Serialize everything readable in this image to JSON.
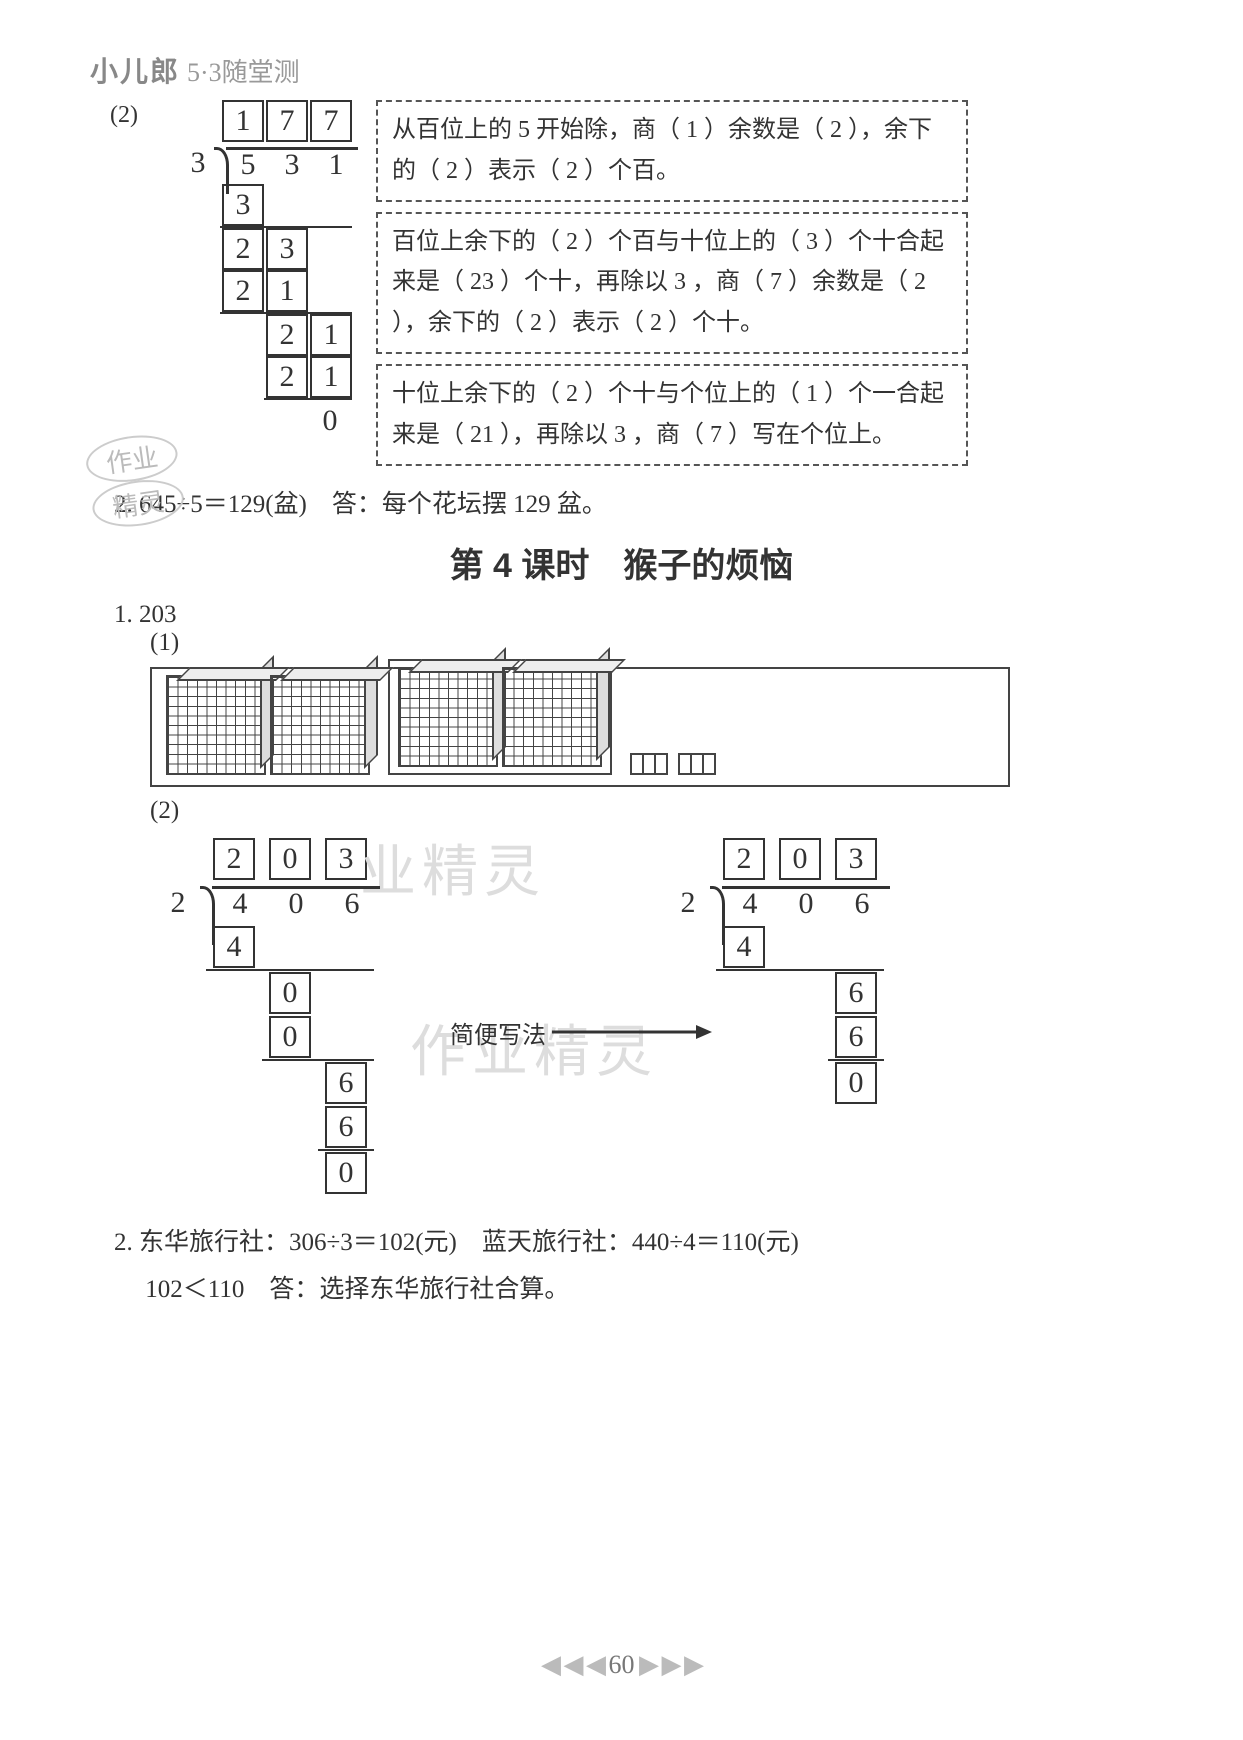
{
  "header": {
    "brand": "小儿郎",
    "subtitle": "5·3随堂测"
  },
  "problem2_top": {
    "label": "(2)",
    "quotient": [
      "1",
      "7",
      "7"
    ],
    "divisor": "3",
    "dividend": [
      "5",
      "3",
      "1"
    ],
    "steps": [
      {
        "vals": [
          "3"
        ],
        "indent": 0,
        "line_after": true,
        "boxed": [
          true
        ]
      },
      {
        "vals": [
          "2",
          "3"
        ],
        "indent": 0,
        "boxed": [
          true,
          true
        ]
      },
      {
        "vals": [
          "2",
          "1"
        ],
        "indent": 0,
        "line_after": true,
        "boxed": [
          true,
          true
        ]
      },
      {
        "vals": [
          "2",
          "1"
        ],
        "indent": 1,
        "boxed": [
          true,
          true
        ]
      },
      {
        "vals": [
          "2",
          "1"
        ],
        "indent": 1,
        "line_after": true,
        "boxed": [
          true,
          true
        ]
      },
      {
        "vals": [
          "0"
        ],
        "indent": 2,
        "boxed": [
          false
        ]
      }
    ],
    "explain": [
      "从百位上的 5 开始除，商（ 1 ）余数是（ 2 ），余下的（ 2 ）表示（ 2 ）个百。",
      "百位上余下的（ 2 ）个百与十位上的（ 3 ）个十合起来是（ 23 ）个十，再除以 3 ，商（ 7 ）余数是（ 2 ），余下的（ 2 ）表示（ 2 ）个十。",
      "十位上余下的（ 2 ）个十与个位上的（ 1 ）个一合起来是（ 21 ），再除以 3 ，商（ 7 ）写在个位上。"
    ]
  },
  "answer2_text": "2. 645÷5＝129(盆)　答：每个花坛摆 129 盆。",
  "stamp": {
    "line1": "作业",
    "line2": "精灵"
  },
  "section_title": "第 4 课时　猴子的烦恼",
  "q1_label": "1. 203",
  "sub1_label": "(1)",
  "sub2_label": "(2)",
  "arrow_label": "简便写法",
  "watermarks": [
    "业精灵",
    "作业精灵"
  ],
  "divA": {
    "quotient": [
      "2",
      "0",
      "3"
    ],
    "divisor": "2",
    "dividend": [
      "4",
      "0",
      "6"
    ],
    "steps": [
      {
        "vals": [
          "4"
        ],
        "indent": 0,
        "line_after": true,
        "boxed": [
          true
        ]
      },
      {
        "vals": [
          "0"
        ],
        "indent": 1,
        "boxed": [
          true
        ]
      },
      {
        "vals": [
          "0"
        ],
        "indent": 1,
        "line_after": true,
        "boxed": [
          true
        ]
      },
      {
        "vals": [
          "6"
        ],
        "indent": 2,
        "boxed": [
          true
        ]
      },
      {
        "vals": [
          "6"
        ],
        "indent": 2,
        "line_after": true,
        "boxed": [
          true
        ]
      },
      {
        "vals": [
          "0"
        ],
        "indent": 2,
        "boxed": [
          true
        ]
      }
    ]
  },
  "divB": {
    "quotient": [
      "2",
      "0",
      "3"
    ],
    "divisor": "2",
    "dividend": [
      "4",
      "0",
      "6"
    ],
    "steps": [
      {
        "vals": [
          "4"
        ],
        "indent": 0,
        "line_after": true,
        "boxed": [
          true
        ]
      },
      {
        "vals": [
          "6"
        ],
        "indent": 2,
        "boxed": [
          true
        ]
      },
      {
        "vals": [
          "6"
        ],
        "indent": 2,
        "line_after": true,
        "boxed": [
          true
        ]
      },
      {
        "vals": [
          "0"
        ],
        "indent": 2,
        "boxed": [
          true
        ]
      }
    ]
  },
  "q2_lines": [
    "2. 东华旅行社：306÷3＝102(元)　蓝天旅行社：440÷4＝110(元)",
    "　 102＜110　答：选择东华旅行社合算。"
  ],
  "page_number": "60",
  "colors": {
    "text": "#333333",
    "border": "#333333",
    "dash": "#555555",
    "watermark": "#dddddd",
    "logo": "#888888"
  }
}
